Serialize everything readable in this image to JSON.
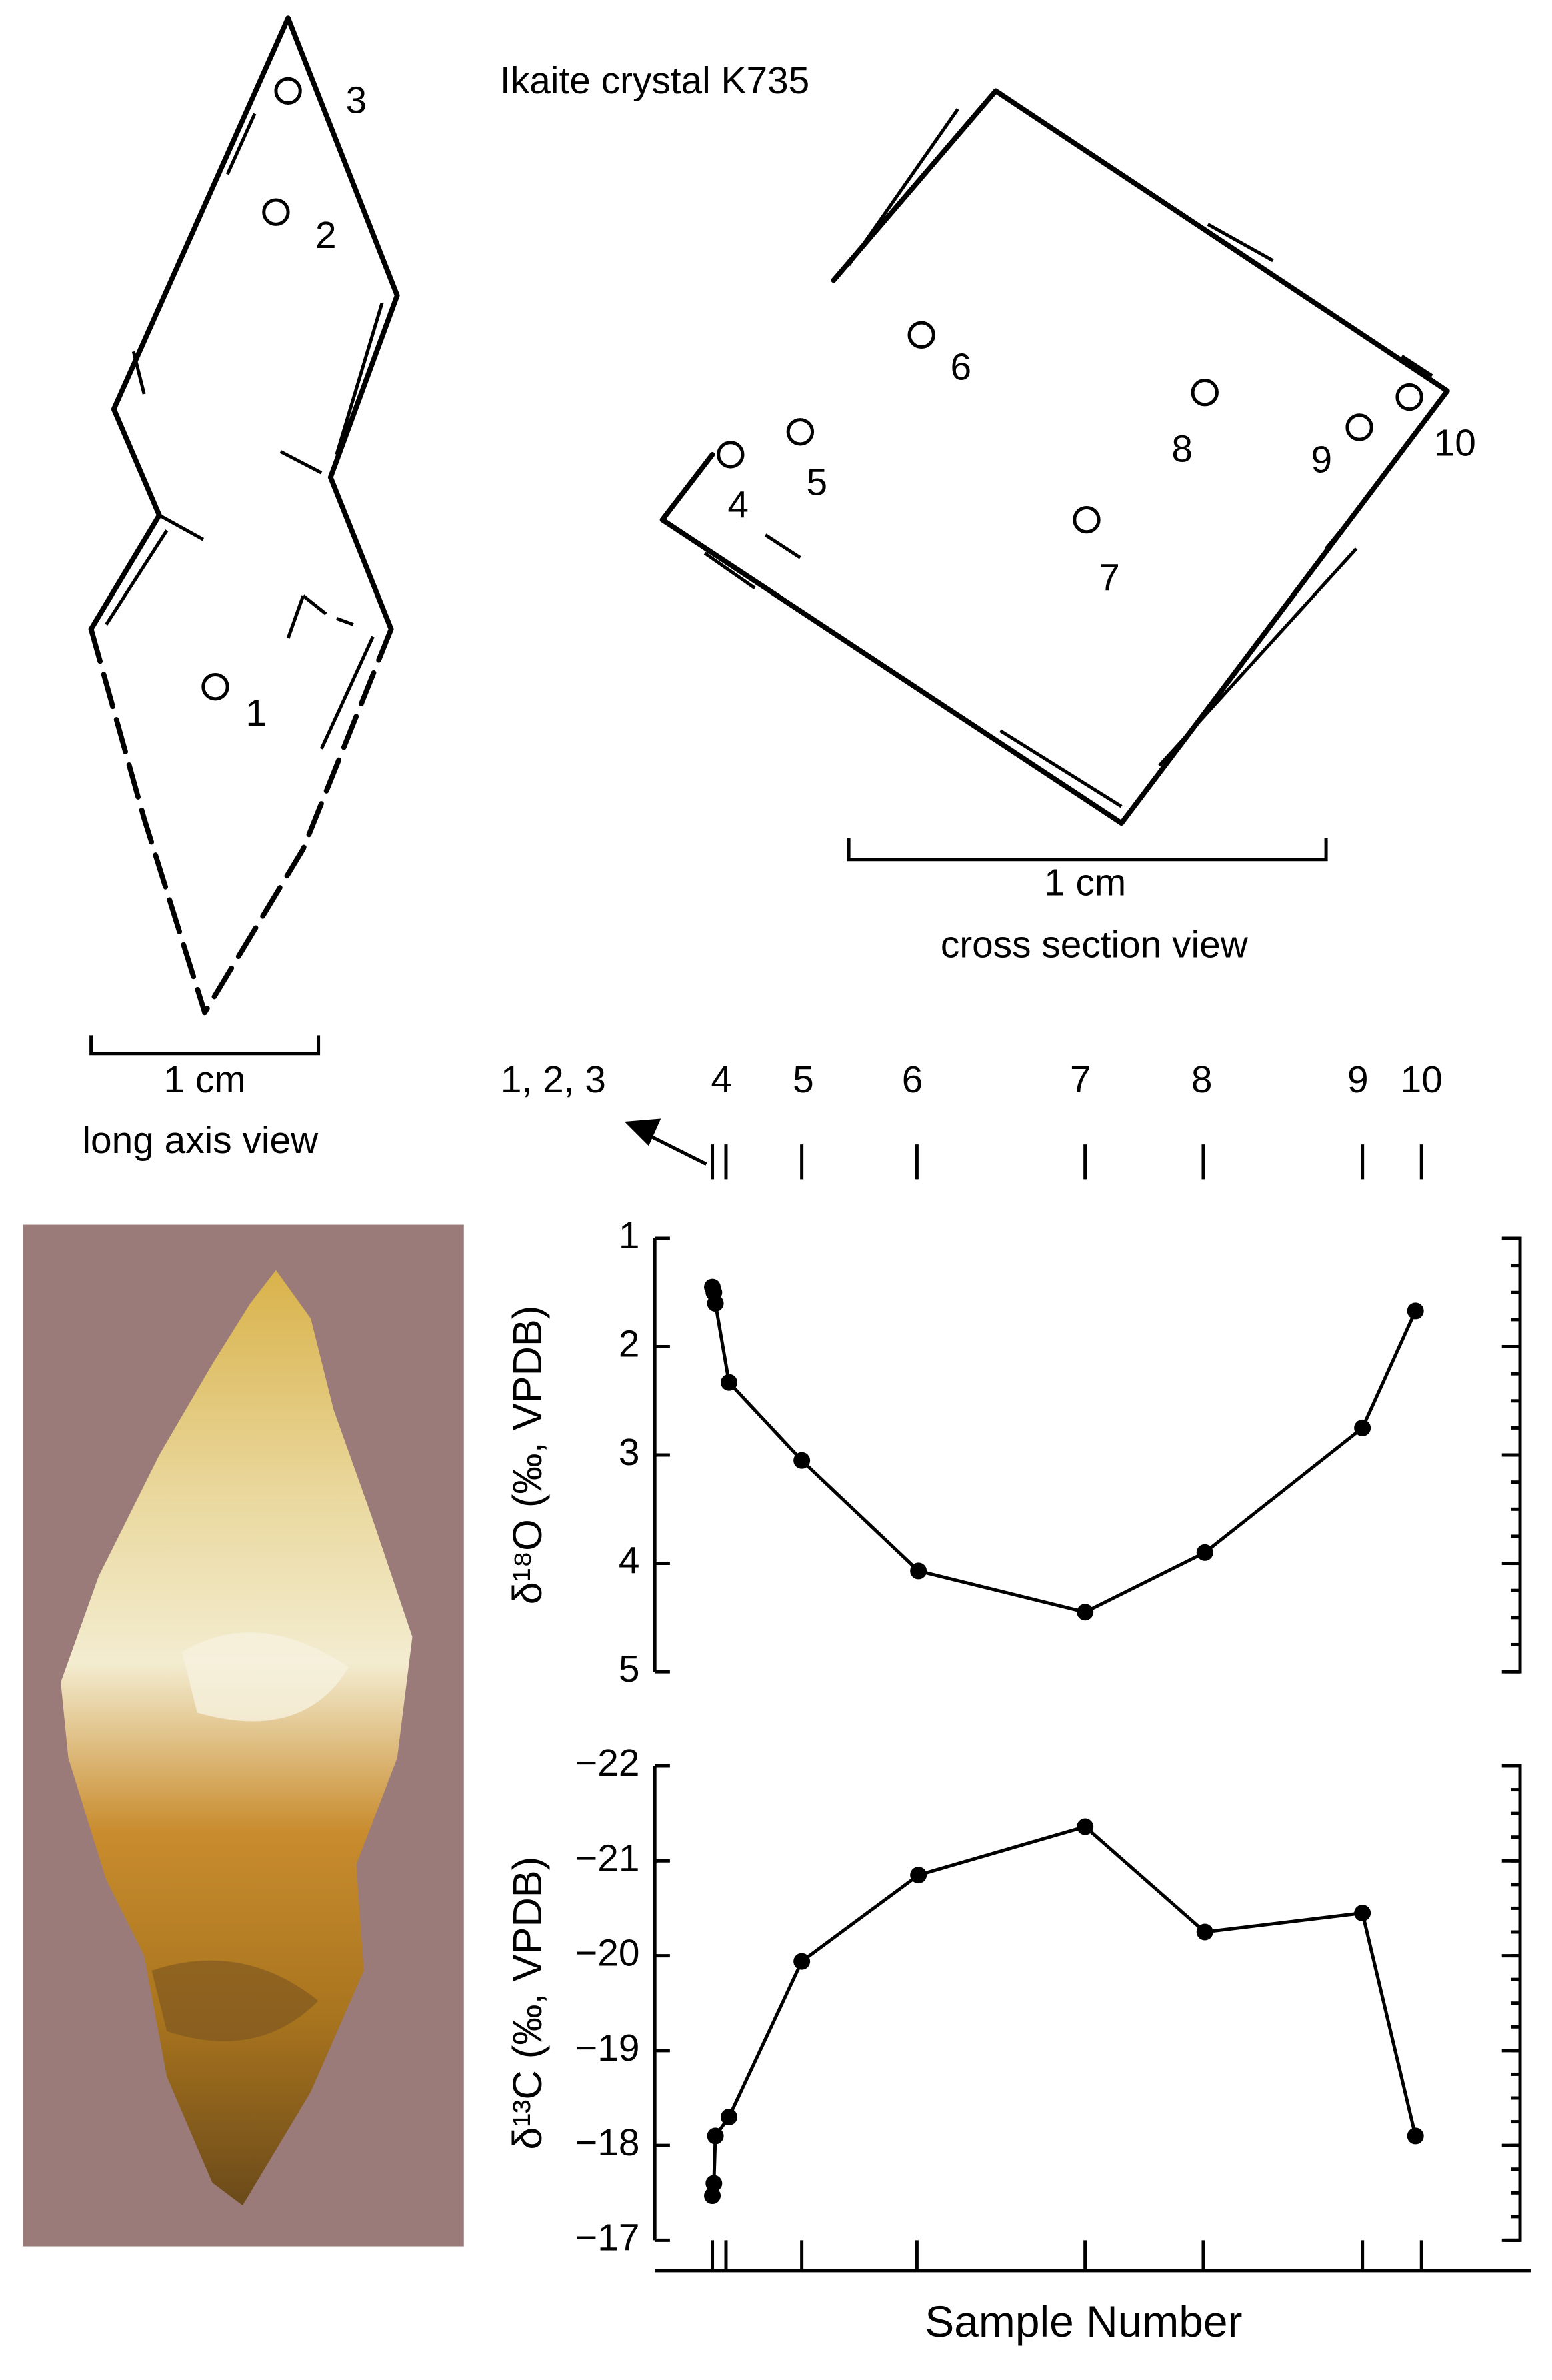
{
  "title": "Ikaite crystal K735",
  "long_axis_view": {
    "samples": [
      "3",
      "2",
      "1"
    ],
    "scale": "1 cm",
    "caption": "long axis view"
  },
  "cross_section_view": {
    "samples": [
      "4",
      "5",
      "6",
      "7",
      "8",
      "9",
      "10"
    ],
    "scale": "1 cm",
    "caption": "cross section view"
  },
  "sample_axis": {
    "labels": [
      "1, 2, 3",
      "4",
      "5",
      "6",
      "7",
      "8",
      "9",
      "10"
    ],
    "title": "Sample Number"
  },
  "chart_data": [
    {
      "type": "line",
      "y_label": "δ¹⁸O (‰, VPDB)",
      "x": [
        1,
        2,
        3,
        4,
        5,
        6,
        7,
        8,
        9,
        10
      ],
      "values": [
        1.45,
        1.5,
        1.6,
        2.33,
        3.05,
        4.07,
        4.45,
        3.9,
        2.75,
        1.67
      ],
      "color": "#000000",
      "ylim": [
        5,
        1
      ],
      "yticks": [
        1,
        2,
        3,
        4,
        5
      ]
    },
    {
      "type": "line",
      "y_label": "δ¹³C (‰, VPDB)",
      "x": [
        1,
        2,
        3,
        4,
        5,
        6,
        7,
        8,
        9,
        10
      ],
      "values": [
        -17.47,
        -17.6,
        -18.1,
        -18.3,
        -19.94,
        -20.85,
        -21.36,
        -20.25,
        -20.45,
        -18.1
      ],
      "color": "#000000",
      "ylim": [
        -17,
        -22
      ],
      "yticks": [
        {
          "value": -22,
          "label": "−22"
        },
        {
          "value": -21,
          "label": "−21"
        },
        {
          "value": -20,
          "label": "−20"
        },
        {
          "value": -19,
          "label": "−19"
        },
        {
          "value": -18,
          "label": "−18"
        },
        {
          "value": -17,
          "label": "−17"
        }
      ]
    }
  ]
}
